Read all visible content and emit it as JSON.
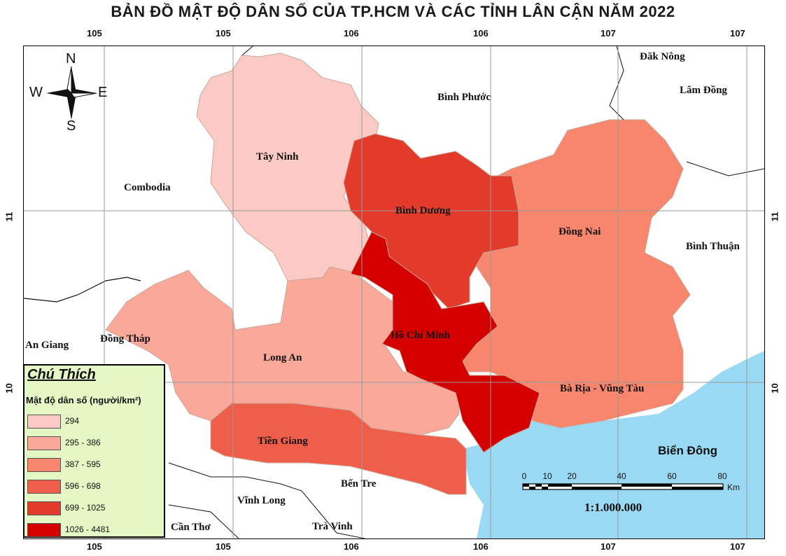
{
  "title": "BẢN ĐỒ MẬT ĐỘ DÂN SỐ CỦA TP.HCM VÀ CÁC TỈNH LÂN CẬN NĂM 2022",
  "grid_labels": {
    "top": [
      "105",
      "105",
      "106",
      "106",
      "107",
      "107"
    ],
    "bottom": [
      "105",
      "105",
      "106",
      "106",
      "107",
      "107"
    ],
    "left": [
      "11",
      "10"
    ],
    "right": [
      "11",
      "10"
    ]
  },
  "compass": {
    "n": "N",
    "s": "S",
    "e": "E",
    "w": "W"
  },
  "regions": {
    "tay_ninh": "Tây Ninh",
    "binh_duong": "Bình Dương",
    "binh_phuoc": "Bình Phước",
    "dong_nai": "Đồng Nai",
    "hcm": "Hồ Chí Minh",
    "long_an": "Long An",
    "ba_ria": "Bà Rịa - Vũng Tàu",
    "tien_giang": "Tiền Giang",
    "ben_tre": "Bến Tre",
    "vinh_long": "Vĩnh Long",
    "tra_vinh": "Trà Vinh",
    "can_tho": "Cần Thơ",
    "dong_thap": "Đồng Tháp",
    "an_giang": "An Giang",
    "combodia": "Combodia",
    "dak_nong": "Đăk Nông",
    "lam_dong": "Lâm Đồng",
    "binh_thuan": "Bình Thuận",
    "bien_dong": "Biển Đông"
  },
  "legend": {
    "title": "Chú Thích",
    "subtitle": "Mật độ dân số (người/km²)",
    "items": [
      {
        "label": "294",
        "color": "#fccac5"
      },
      {
        "label": "295 - 386",
        "color": "#f9a899"
      },
      {
        "label": "387 - 595",
        "color": "#f7866d"
      },
      {
        "label": "596 - 698",
        "color": "#ef5e4a"
      },
      {
        "label": "699 - 1025",
        "color": "#e23b2b"
      },
      {
        "label": "1026 - 4481",
        "color": "#d40000"
      }
    ]
  },
  "scale": {
    "ticks": [
      "0",
      "10",
      "20",
      "40",
      "60",
      "80"
    ],
    "unit": "Km",
    "ratio": "1:1.000.000"
  },
  "colors": {
    "sea": "#9ad9f3",
    "grid": "#999999"
  }
}
